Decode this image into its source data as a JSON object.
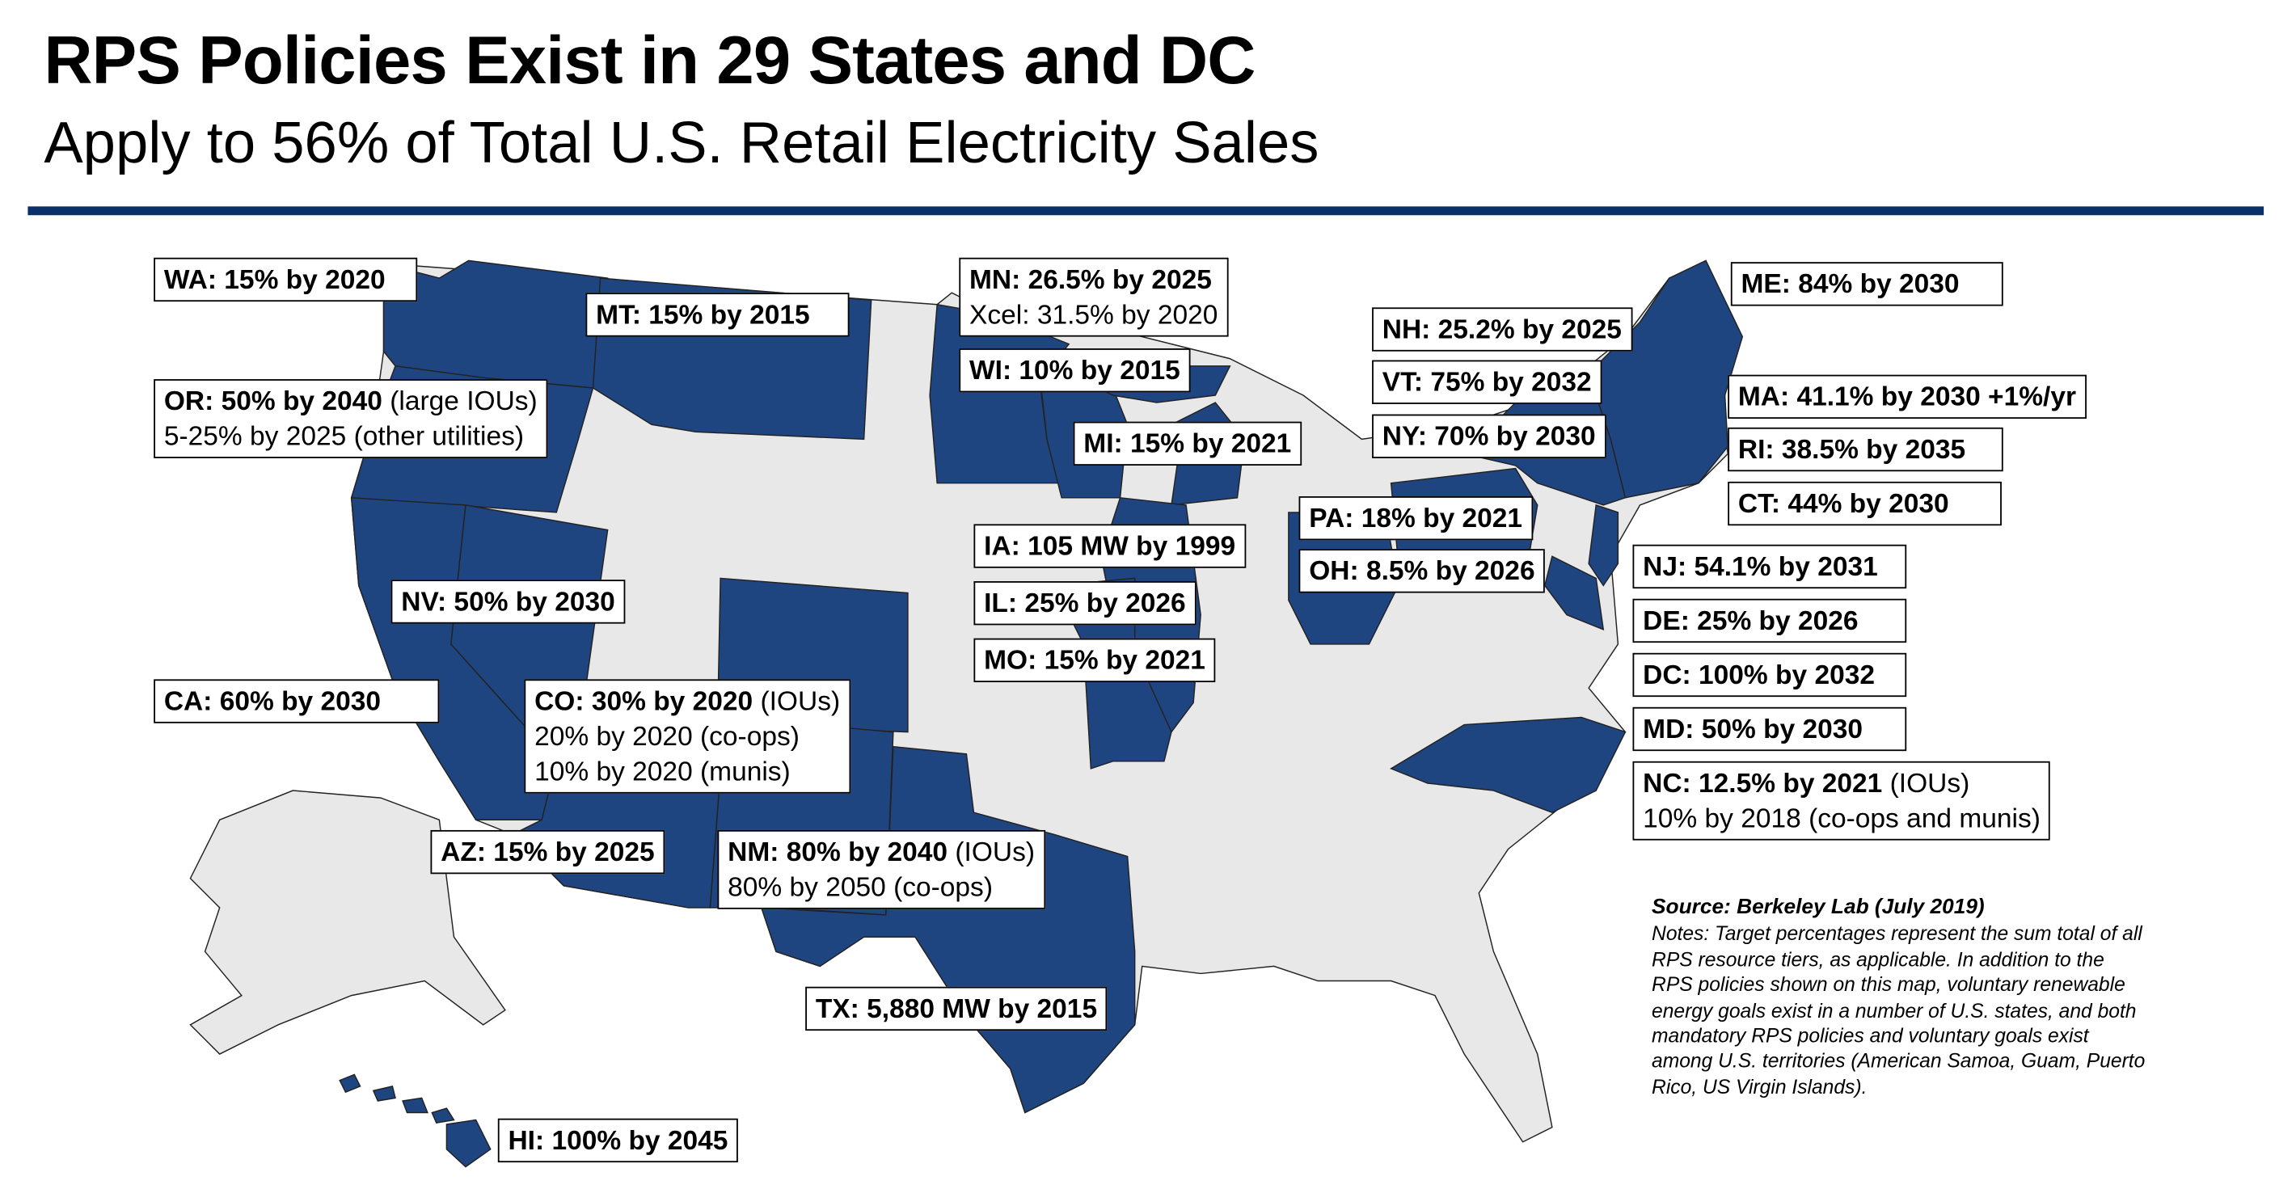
{
  "header": {
    "title": "RPS Policies Exist in 29 States and DC",
    "subtitle": "Apply to 56% of Total U.S. Retail Electricity Sales"
  },
  "colors": {
    "rps_state": "#1f4580",
    "non_rps_state": "#e8e8e8",
    "rule": "#0b3067"
  },
  "labels": [
    {
      "state": "WA",
      "lines": [
        {
          "bold": "WA: 15% by 2020",
          "normal": ""
        }
      ]
    },
    {
      "state": "MT",
      "lines": [
        {
          "bold": "MT: 15% by 2015",
          "normal": ""
        }
      ]
    },
    {
      "state": "MN",
      "lines": [
        {
          "bold": "MN: 26.5% by 2025",
          "normal": ""
        },
        {
          "bold": "",
          "normal": "Xcel: 31.5% by 2020"
        }
      ]
    },
    {
      "state": "WI",
      "lines": [
        {
          "bold": "WI: 10% by 2015",
          "normal": ""
        }
      ]
    },
    {
      "state": "OR",
      "lines": [
        {
          "bold": "OR: 50% by 2040",
          "normal": " (large IOUs)"
        },
        {
          "bold": "",
          "normal": "5-25% by 2025 (other utilities)"
        }
      ]
    },
    {
      "state": "MI",
      "lines": [
        {
          "bold": "MI: 15% by 2021",
          "normal": ""
        }
      ]
    },
    {
      "state": "NH",
      "lines": [
        {
          "bold": "NH: 25.2% by 2025",
          "normal": ""
        }
      ]
    },
    {
      "state": "VT",
      "lines": [
        {
          "bold": "VT: 75% by 2032",
          "normal": ""
        }
      ]
    },
    {
      "state": "NY",
      "lines": [
        {
          "bold": "NY: 70% by 2030",
          "normal": ""
        }
      ]
    },
    {
      "state": "ME",
      "lines": [
        {
          "bold": "ME: 84% by 2030",
          "normal": ""
        }
      ]
    },
    {
      "state": "MA",
      "lines": [
        {
          "bold": "MA: 41.1% by 2030 +1%/yr",
          "normal": ""
        }
      ]
    },
    {
      "state": "RI",
      "lines": [
        {
          "bold": "RI: 38.5% by 2035",
          "normal": ""
        }
      ]
    },
    {
      "state": "CT",
      "lines": [
        {
          "bold": "CT: 44% by 2030",
          "normal": ""
        }
      ]
    },
    {
      "state": "PA",
      "lines": [
        {
          "bold": "PA: 18% by 2021",
          "normal": ""
        }
      ]
    },
    {
      "state": "OH",
      "lines": [
        {
          "bold": "OH: 8.5% by 2026",
          "normal": ""
        }
      ]
    },
    {
      "state": "IA",
      "lines": [
        {
          "bold": "IA: 105 MW by 1999",
          "normal": ""
        }
      ]
    },
    {
      "state": "IL",
      "lines": [
        {
          "bold": "IL: 25% by 2026",
          "normal": ""
        }
      ]
    },
    {
      "state": "MO",
      "lines": [
        {
          "bold": "MO: 15% by 2021",
          "normal": ""
        }
      ]
    },
    {
      "state": "NV",
      "lines": [
        {
          "bold": "NV: 50% by 2030",
          "normal": ""
        }
      ]
    },
    {
      "state": "CA",
      "lines": [
        {
          "bold": "CA: 60% by 2030",
          "normal": ""
        }
      ]
    },
    {
      "state": "CO",
      "lines": [
        {
          "bold": "CO: 30% by 2020",
          "normal": " (IOUs)"
        },
        {
          "bold": "",
          "normal": "20% by 2020 (co-ops)"
        },
        {
          "bold": "",
          "normal": "10% by 2020 (munis)"
        }
      ]
    },
    {
      "state": "AZ",
      "lines": [
        {
          "bold": "AZ: 15% by 2025",
          "normal": ""
        }
      ]
    },
    {
      "state": "NM",
      "lines": [
        {
          "bold": "NM: 80% by 2040",
          "normal": " (IOUs)"
        },
        {
          "bold": "",
          "normal": "80% by 2050 (co-ops)"
        }
      ]
    },
    {
      "state": "NJ",
      "lines": [
        {
          "bold": "NJ: 54.1% by 2031",
          "normal": ""
        }
      ]
    },
    {
      "state": "DE",
      "lines": [
        {
          "bold": "DE: 25% by 2026",
          "normal": ""
        }
      ]
    },
    {
      "state": "DC",
      "lines": [
        {
          "bold": "DC: 100% by 2032",
          "normal": ""
        }
      ]
    },
    {
      "state": "MD",
      "lines": [
        {
          "bold": "MD: 50% by 2030",
          "normal": ""
        }
      ]
    },
    {
      "state": "NC",
      "lines": [
        {
          "bold": "NC: 12.5% by 2021",
          "normal": " (IOUs)"
        },
        {
          "bold": "",
          "normal": "10% by 2018 (co-ops and munis)"
        }
      ]
    },
    {
      "state": "TX",
      "lines": [
        {
          "bold": "TX: 5,880 MW by 2015",
          "normal": ""
        }
      ]
    },
    {
      "state": "HI",
      "lines": [
        {
          "bold": "HI: 100% by 2045",
          "normal": ""
        }
      ]
    }
  ],
  "notes": {
    "source": "Source: Berkeley Lab (July 2019)",
    "text": "Notes: Target percentages represent the sum total of all RPS resource tiers, as applicable. In addition to the RPS policies shown on this map, voluntary renewable energy goals exist in a number of U.S. states, and both mandatory RPS policies and voluntary goals exist among U.S. territories (American Samoa, Guam, Puerto Rico, US Virgin Islands)."
  }
}
